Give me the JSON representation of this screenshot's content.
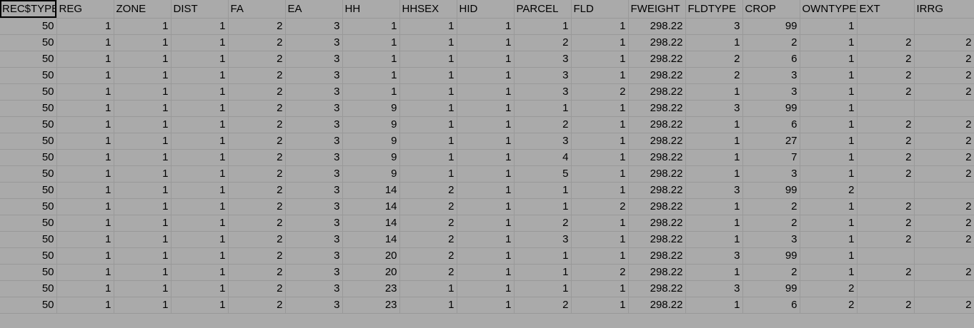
{
  "sheet": {
    "headers": [
      "REC$TYPE",
      "REG",
      "ZONE",
      "DIST",
      "FA",
      "EA",
      "HH",
      "HHSEX",
      "HID",
      "PARCEL",
      "FLD",
      "FWEIGHT",
      "FLDTYPE",
      "CROP",
      "OWNTYPE",
      "EXT",
      "IRRG"
    ],
    "rows": [
      [
        "50",
        "1",
        "1",
        "1",
        "2",
        "3",
        "1",
        "1",
        "1",
        "1",
        "1",
        "298.22",
        "3",
        "99",
        "1",
        "",
        ""
      ],
      [
        "50",
        "1",
        "1",
        "1",
        "2",
        "3",
        "1",
        "1",
        "1",
        "2",
        "1",
        "298.22",
        "1",
        "2",
        "1",
        "2",
        "2"
      ],
      [
        "50",
        "1",
        "1",
        "1",
        "2",
        "3",
        "1",
        "1",
        "1",
        "3",
        "1",
        "298.22",
        "2",
        "6",
        "1",
        "2",
        "2"
      ],
      [
        "50",
        "1",
        "1",
        "1",
        "2",
        "3",
        "1",
        "1",
        "1",
        "3",
        "1",
        "298.22",
        "2",
        "3",
        "1",
        "2",
        "2"
      ],
      [
        "50",
        "1",
        "1",
        "1",
        "2",
        "3",
        "1",
        "1",
        "1",
        "3",
        "2",
        "298.22",
        "1",
        "3",
        "1",
        "2",
        "2"
      ],
      [
        "50",
        "1",
        "1",
        "1",
        "2",
        "3",
        "9",
        "1",
        "1",
        "1",
        "1",
        "298.22",
        "3",
        "99",
        "1",
        "",
        ""
      ],
      [
        "50",
        "1",
        "1",
        "1",
        "2",
        "3",
        "9",
        "1",
        "1",
        "2",
        "1",
        "298.22",
        "1",
        "6",
        "1",
        "2",
        "2"
      ],
      [
        "50",
        "1",
        "1",
        "1",
        "2",
        "3",
        "9",
        "1",
        "1",
        "3",
        "1",
        "298.22",
        "1",
        "27",
        "1",
        "2",
        "2"
      ],
      [
        "50",
        "1",
        "1",
        "1",
        "2",
        "3",
        "9",
        "1",
        "1",
        "4",
        "1",
        "298.22",
        "1",
        "7",
        "1",
        "2",
        "2"
      ],
      [
        "50",
        "1",
        "1",
        "1",
        "2",
        "3",
        "9",
        "1",
        "1",
        "5",
        "1",
        "298.22",
        "1",
        "3",
        "1",
        "2",
        "2"
      ],
      [
        "50",
        "1",
        "1",
        "1",
        "2",
        "3",
        "14",
        "2",
        "1",
        "1",
        "1",
        "298.22",
        "3",
        "99",
        "2",
        "",
        ""
      ],
      [
        "50",
        "1",
        "1",
        "1",
        "2",
        "3",
        "14",
        "2",
        "1",
        "1",
        "2",
        "298.22",
        "1",
        "2",
        "1",
        "2",
        "2"
      ],
      [
        "50",
        "1",
        "1",
        "1",
        "2",
        "3",
        "14",
        "2",
        "1",
        "2",
        "1",
        "298.22",
        "1",
        "2",
        "1",
        "2",
        "2"
      ],
      [
        "50",
        "1",
        "1",
        "1",
        "2",
        "3",
        "14",
        "2",
        "1",
        "3",
        "1",
        "298.22",
        "1",
        "3",
        "1",
        "2",
        "2"
      ],
      [
        "50",
        "1",
        "1",
        "1",
        "2",
        "3",
        "20",
        "2",
        "1",
        "1",
        "1",
        "298.22",
        "3",
        "99",
        "1",
        "",
        ""
      ],
      [
        "50",
        "1",
        "1",
        "1",
        "2",
        "3",
        "20",
        "2",
        "1",
        "1",
        "2",
        "298.22",
        "1",
        "2",
        "1",
        "2",
        "2"
      ],
      [
        "50",
        "1",
        "1",
        "1",
        "2",
        "3",
        "23",
        "1",
        "1",
        "1",
        "1",
        "298.22",
        "3",
        "99",
        "2",
        "",
        ""
      ],
      [
        "50",
        "1",
        "1",
        "1",
        "2",
        "3",
        "23",
        "1",
        "1",
        "2",
        "1",
        "298.22",
        "1",
        "6",
        "2",
        "2",
        "2"
      ]
    ]
  }
}
